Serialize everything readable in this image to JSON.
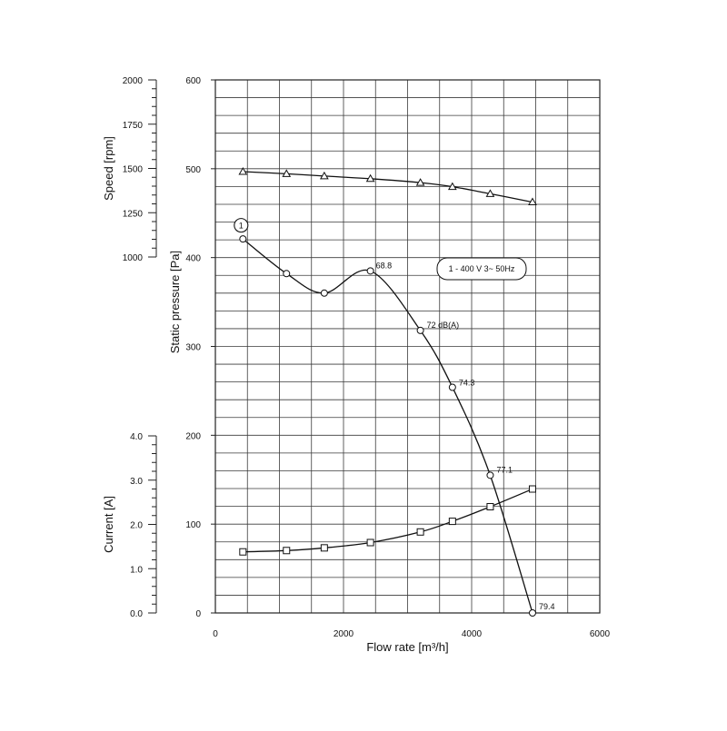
{
  "chart_data": {
    "type": "line",
    "grid": true,
    "x_axis": {
      "label": "Flow rate [m³/h]",
      "range": [
        0,
        6000
      ],
      "ticks": [
        0,
        2000,
        4000,
        6000
      ],
      "tick_labels": [
        "0",
        "2000",
        "4000",
        "6000"
      ]
    },
    "y_axes": {
      "pressure": {
        "label": "Static pressure [Pa]",
        "range": [
          0,
          600
        ],
        "ticks": [
          0,
          100,
          200,
          300,
          400,
          500,
          600
        ],
        "tick_labels": [
          "0",
          "100",
          "200",
          "300",
          "400",
          "500",
          "600"
        ]
      },
      "speed": {
        "label": "Speed [rpm]",
        "range": [
          1000,
          2000
        ],
        "ticks": [
          1000,
          1250,
          1500,
          1750,
          2000
        ],
        "tick_labels": [
          "1000",
          "1250",
          "1500",
          "1750",
          "2000"
        ]
      },
      "current": {
        "label": "Current [A]",
        "range": [
          0,
          4
        ],
        "ticks": [
          0,
          1,
          2,
          3,
          4
        ],
        "tick_labels": [
          "0.0",
          "1.0",
          "2.0",
          "3.0",
          "4.0"
        ]
      }
    },
    "series": [
      {
        "key": "speed",
        "axis": "speed",
        "marker": "triangle",
        "x": [
          430,
          1110,
          1700,
          2420,
          3200,
          3700,
          4290,
          4950
        ],
        "y": [
          1482,
          1470,
          1457,
          1442,
          1420,
          1397,
          1357,
          1310
        ]
      },
      {
        "key": "pressure",
        "axis": "pressure",
        "marker": "circle",
        "x": [
          430,
          1110,
          1700,
          2420,
          3200,
          3700,
          4290,
          4950
        ],
        "y": [
          421,
          382,
          360,
          385,
          318,
          254,
          155,
          0
        ]
      },
      {
        "key": "current",
        "axis": "current",
        "marker": "square",
        "x": [
          430,
          1110,
          1700,
          2420,
          3200,
          3700,
          4290,
          4950
        ],
        "y": [
          1.38,
          1.41,
          1.47,
          1.59,
          1.83,
          2.07,
          2.4,
          2.8
        ]
      }
    ],
    "annotations": [
      {
        "series": "pressure",
        "point": 3,
        "text": "68.8"
      },
      {
        "series": "pressure",
        "point": 4,
        "text": "72 dB(A)"
      },
      {
        "series": "pressure",
        "point": 5,
        "text": "74.3"
      },
      {
        "series": "pressure",
        "point": 6,
        "text": "77.1"
      },
      {
        "series": "pressure",
        "point": 7,
        "text": "79.4"
      }
    ],
    "curve_marker": {
      "text": "1",
      "series": "pressure",
      "point": 0
    },
    "legend": {
      "text": "1 - 400 V 3~ 50Hz",
      "placement": "top-right"
    }
  }
}
